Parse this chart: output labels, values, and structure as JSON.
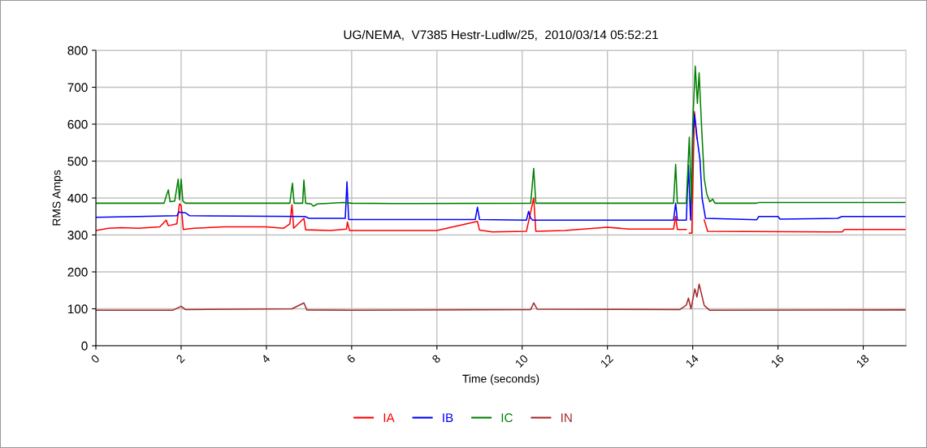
{
  "chart_data": {
    "type": "line",
    "title": "UG/NEMA,  V7385 Hestr-Ludlw/25,  2010/03/14 05:52:21",
    "xlabel": "Time (seconds)",
    "ylabel": "RMS Amps",
    "xlim": [
      0,
      19
    ],
    "xticks": [
      0,
      2,
      4,
      6,
      8,
      10,
      12,
      14,
      16,
      18
    ],
    "ylim": [
      0,
      800
    ],
    "yticks": [
      0,
      100,
      200,
      300,
      400,
      500,
      600,
      700,
      800
    ],
    "grid": true,
    "legend": "bottom",
    "marker": "none",
    "line_style": "solid",
    "series": [
      {
        "name": "IA",
        "color": "#ff0000",
        "x": [
          0,
          0.3,
          0.6,
          1.0,
          1.5,
          1.65,
          1.7,
          1.9,
          1.96,
          2.0,
          2.05,
          2.3,
          3.0,
          4.0,
          4.4,
          4.55,
          4.6,
          4.64,
          4.88,
          4.92,
          5.5,
          5.88,
          5.9,
          5.95,
          8.0,
          8.95,
          9.0,
          9.3,
          10.1,
          10.27,
          10.32,
          11.0,
          12.0,
          12.5,
          13.55,
          13.6,
          13.64,
          13.85,
          13.88,
          13.92,
          13.98,
          14.04,
          14.1,
          14.2,
          14.27,
          14.35,
          17.5,
          17.56,
          19
        ],
        "values": [
          312,
          318,
          320,
          318,
          322,
          340,
          325,
          330,
          384,
          380,
          315,
          318,
          322,
          322,
          318,
          330,
          382,
          318,
          345,
          314,
          312,
          316,
          335,
          312,
          312,
          337,
          313,
          308,
          310,
          400,
          310,
          312,
          321,
          316,
          316,
          350,
          315,
          315,
          null,
          305,
          305,
          634,
          560,
          null,
          341,
          310,
          308,
          315,
          315
        ]
      },
      {
        "name": "IB",
        "color": "#0000ff",
        "x": [
          0,
          1.0,
          1.9,
          1.95,
          2.1,
          2.2,
          4.9,
          5.0,
          5.85,
          5.89,
          5.93,
          8.9,
          8.95,
          9.0,
          10.1,
          10.15,
          10.2,
          10.25,
          13.55,
          13.6,
          13.64,
          13.85,
          13.9,
          13.95,
          14.0,
          14.04,
          14.1,
          14.17,
          14.22,
          14.3,
          15.5,
          15.55,
          16.0,
          16.05,
          17.4,
          17.5,
          19
        ],
        "values": [
          348,
          350,
          352,
          362,
          360,
          352,
          350,
          345,
          345,
          444,
          342,
          342,
          375,
          342,
          340,
          364,
          345,
          340,
          340,
          386,
          340,
          340,
          489,
          340,
          560,
          627,
          565,
          504,
          400,
          345,
          341,
          350,
          350,
          343,
          345,
          350,
          350
        ]
      },
      {
        "name": "IC",
        "color": "#008000",
        "x": [
          0,
          1.6,
          1.65,
          1.7,
          1.74,
          1.85,
          1.93,
          1.96,
          2.0,
          2.04,
          2.1,
          4.55,
          4.61,
          4.65,
          4.85,
          4.88,
          4.92,
          5.05,
          5.1,
          5.2,
          5.8,
          6.0,
          7.0,
          10.2,
          10.27,
          10.32,
          13.55,
          13.6,
          13.64,
          13.85,
          13.92,
          13.97,
          14.0,
          14.06,
          14.11,
          14.15,
          14.21,
          14.27,
          14.33,
          14.4,
          14.47,
          14.52,
          15.5,
          15.55,
          19
        ],
        "values": [
          386,
          386,
          405,
          422,
          390,
          392,
          451,
          395,
          451,
          392,
          386,
          386,
          440,
          386,
          386,
          449,
          386,
          384,
          378,
          384,
          388,
          386,
          385,
          386,
          480,
          386,
          386,
          491,
          386,
          386,
          565,
          386,
          600,
          757,
          656,
          739,
          589,
          453,
          411,
          390,
          397,
          386,
          386,
          388,
          388
        ]
      },
      {
        "name": "IN",
        "color": "#a52a2a",
        "x": [
          0,
          1.8,
          2.0,
          2.1,
          4.6,
          4.88,
          4.95,
          6.0,
          10.2,
          10.27,
          10.35,
          13.7,
          13.85,
          13.9,
          13.96,
          14.05,
          14.1,
          14.15,
          14.27,
          14.4,
          19
        ],
        "values": [
          96,
          96,
          107,
          98,
          100,
          116,
          97,
          96,
          98,
          116,
          99,
          98,
          110,
          129,
          100,
          154,
          132,
          167,
          109,
          96,
          97
        ]
      }
    ]
  }
}
